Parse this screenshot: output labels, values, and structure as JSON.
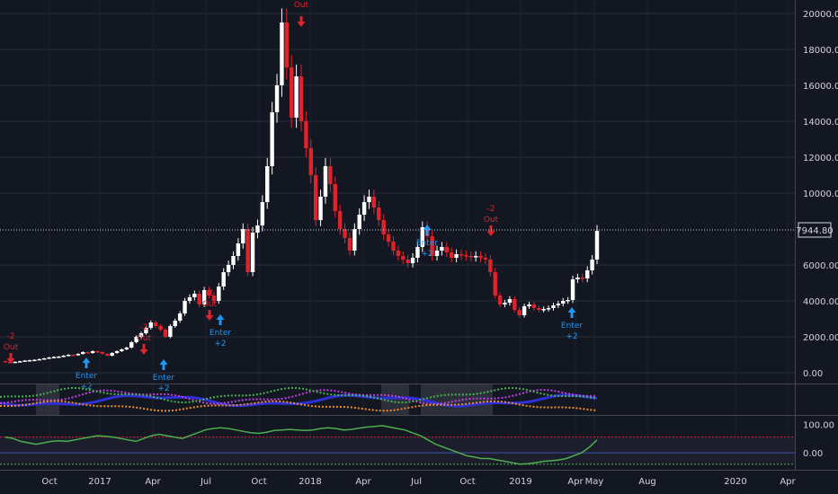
{
  "price_axis": {
    "ticks": [
      "20000.00",
      "18000.00",
      "16000.00",
      "14000.00",
      "12000.00",
      "10000.00",
      "6000.00",
      "4000.00",
      "2000.00",
      "0.00"
    ],
    "last_price_label": "7944.80"
  },
  "osc_axis": {
    "ticks": [
      "100.00",
      "0.00"
    ]
  },
  "time_axis": {
    "ticks": [
      "Oct",
      "2017",
      "Apr",
      "Jul",
      "Oct",
      "2018",
      "Apr",
      "Jul",
      "Oct",
      "2019",
      "Apr",
      "May",
      "Aug",
      "2020",
      "Apr"
    ]
  },
  "signals": [
    {
      "text1": "-2",
      "text2": "Out",
      "dir": "sell"
    },
    {
      "text1": "Enter",
      "text2": "+2",
      "dir": "buy"
    },
    {
      "text1": "-2",
      "text2": "Out",
      "dir": "sell"
    },
    {
      "text1": "Enter",
      "text2": "+2",
      "dir": "buy"
    },
    {
      "text1": "-2",
      "text2": "Out",
      "dir": "sell"
    },
    {
      "text1": "Enter",
      "text2": "+2",
      "dir": "buy"
    },
    {
      "text1": "Out",
      "text2": "",
      "dir": "sell"
    },
    {
      "text1": "Enter",
      "text2": "+2",
      "dir": "buy"
    },
    {
      "text1": "-2",
      "text2": "Out",
      "dir": "sell"
    },
    {
      "text1": "Enter",
      "text2": "+2",
      "dir": "buy"
    }
  ],
  "colors": {
    "background": "#131722",
    "bull": "#ffffff",
    "bear": "#e0222b",
    "buy_signal": "#2196f3",
    "sell_signal": "#e0222b",
    "grid": "#2a2e39",
    "axis_text": "#d1d4dc",
    "osc_line": "#4caf50",
    "osc_upper": "#e0222b",
    "osc_mid": "#3f51b5",
    "osc_lower": "#4caf50"
  },
  "chart_data": {
    "type": "candlestick",
    "price_ylim": [
      0,
      20000
    ],
    "candles": [
      {
        "o": 650,
        "c": 600
      },
      {
        "o": 600,
        "c": 580
      },
      {
        "o": 580,
        "c": 610
      },
      {
        "o": 610,
        "c": 640
      },
      {
        "o": 640,
        "c": 680
      },
      {
        "o": 680,
        "c": 700
      },
      {
        "o": 700,
        "c": 720
      },
      {
        "o": 720,
        "c": 760
      },
      {
        "o": 760,
        "c": 800
      },
      {
        "o": 800,
        "c": 850
      },
      {
        "o": 850,
        "c": 880
      },
      {
        "o": 880,
        "c": 900
      },
      {
        "o": 900,
        "c": 950
      },
      {
        "o": 950,
        "c": 1000
      },
      {
        "o": 1000,
        "c": 980
      },
      {
        "o": 980,
        "c": 1050
      },
      {
        "o": 1050,
        "c": 1150
      },
      {
        "o": 1150,
        "c": 1100
      },
      {
        "o": 1100,
        "c": 1200
      },
      {
        "o": 1200,
        "c": 1150
      },
      {
        "o": 1150,
        "c": 1050
      },
      {
        "o": 1050,
        "c": 950
      },
      {
        "o": 950,
        "c": 1100
      },
      {
        "o": 1100,
        "c": 1200
      },
      {
        "o": 1200,
        "c": 1300
      },
      {
        "o": 1300,
        "c": 1400
      },
      {
        "o": 1400,
        "c": 1700
      },
      {
        "o": 1700,
        "c": 2000
      },
      {
        "o": 2000,
        "c": 2200
      },
      {
        "o": 2200,
        "c": 2500
      },
      {
        "o": 2500,
        "c": 2800
      },
      {
        "o": 2800,
        "c": 2600
      },
      {
        "o": 2600,
        "c": 2400
      },
      {
        "o": 2400,
        "c": 2000
      },
      {
        "o": 2000,
        "c": 2600
      },
      {
        "o": 2600,
        "c": 2900
      },
      {
        "o": 2900,
        "c": 3300
      },
      {
        "o": 3300,
        "c": 4000
      },
      {
        "o": 4000,
        "c": 4200
      },
      {
        "o": 4200,
        "c": 4400
      },
      {
        "o": 4400,
        "c": 3800
      },
      {
        "o": 3800,
        "c": 4600
      },
      {
        "o": 4600,
        "c": 4300
      },
      {
        "o": 4300,
        "c": 4000
      },
      {
        "o": 4000,
        "c": 4800
      },
      {
        "o": 4800,
        "c": 5600
      },
      {
        "o": 5600,
        "c": 6000
      },
      {
        "o": 6000,
        "c": 6500
      },
      {
        "o": 6500,
        "c": 7200
      },
      {
        "o": 7200,
        "c": 8000
      },
      {
        "o": 8000,
        "c": 5600
      },
      {
        "o": 5600,
        "c": 7800
      },
      {
        "o": 7800,
        "c": 8200
      },
      {
        "o": 8200,
        "c": 9500
      },
      {
        "o": 9500,
        "c": 11500
      },
      {
        "o": 11500,
        "c": 14500
      },
      {
        "o": 14500,
        "c": 16000
      },
      {
        "o": 16000,
        "c": 19500
      },
      {
        "o": 19500,
        "c": 17000
      },
      {
        "o": 17000,
        "c": 14200
      },
      {
        "o": 14200,
        "c": 16500
      },
      {
        "o": 16500,
        "c": 14000
      },
      {
        "o": 14000,
        "c": 12500
      },
      {
        "o": 12500,
        "c": 11000
      },
      {
        "o": 11000,
        "c": 8500
      },
      {
        "o": 8500,
        "c": 9800
      },
      {
        "o": 9800,
        "c": 11500
      },
      {
        "o": 11500,
        "c": 10500
      },
      {
        "o": 10500,
        "c": 9000
      },
      {
        "o": 9000,
        "c": 8000
      },
      {
        "o": 8000,
        "c": 7500
      },
      {
        "o": 7500,
        "c": 6800
      },
      {
        "o": 6800,
        "c": 8000
      },
      {
        "o": 8000,
        "c": 8800
      },
      {
        "o": 8800,
        "c": 9500
      },
      {
        "o": 9500,
        "c": 9800
      },
      {
        "o": 9800,
        "c": 9200
      },
      {
        "o": 9200,
        "c": 8500
      },
      {
        "o": 8500,
        "c": 7700
      },
      {
        "o": 7700,
        "c": 7300
      },
      {
        "o": 7300,
        "c": 6800
      },
      {
        "o": 6800,
        "c": 6500
      },
      {
        "o": 6500,
        "c": 6300
      },
      {
        "o": 6300,
        "c": 6100
      },
      {
        "o": 6100,
        "c": 6400
      },
      {
        "o": 6400,
        "c": 7000
      },
      {
        "o": 7000,
        "c": 8100
      },
      {
        "o": 8100,
        "c": 7600
      },
      {
        "o": 7600,
        "c": 6500
      },
      {
        "o": 6500,
        "c": 6800
      },
      {
        "o": 6800,
        "c": 7000
      },
      {
        "o": 7000,
        "c": 6700
      },
      {
        "o": 6700,
        "c": 6400
      },
      {
        "o": 6400,
        "c": 6600
      },
      {
        "o": 6600,
        "c": 6550
      },
      {
        "o": 6550,
        "c": 6500
      },
      {
        "o": 6500,
        "c": 6450
      },
      {
        "o": 6450,
        "c": 6500
      },
      {
        "o": 6500,
        "c": 6400
      },
      {
        "o": 6400,
        "c": 6300
      },
      {
        "o": 6300,
        "c": 5600
      },
      {
        "o": 5600,
        "c": 4300
      },
      {
        "o": 4300,
        "c": 3800
      },
      {
        "o": 3800,
        "c": 3900
      },
      {
        "o": 3900,
        "c": 4100
      },
      {
        "o": 4100,
        "c": 3500
      },
      {
        "o": 3500,
        "c": 3200
      },
      {
        "o": 3200,
        "c": 3700
      },
      {
        "o": 3700,
        "c": 3800
      },
      {
        "o": 3800,
        "c": 3600
      },
      {
        "o": 3600,
        "c": 3500
      },
      {
        "o": 3500,
        "c": 3550
      },
      {
        "o": 3550,
        "c": 3600
      },
      {
        "o": 3600,
        "c": 3750
      },
      {
        "o": 3750,
        "c": 3850
      },
      {
        "o": 3850,
        "c": 4000
      },
      {
        "o": 4000,
        "c": 4050
      },
      {
        "o": 4050,
        "c": 5200
      },
      {
        "o": 5200,
        "c": 5300
      },
      {
        "o": 5300,
        "c": 5250
      },
      {
        "o": 5250,
        "c": 5700
      },
      {
        "o": 5700,
        "c": 6300
      },
      {
        "o": 6300,
        "c": 7900
      }
    ],
    "osc_ylim": [
      -50,
      120
    ],
    "osc_upper": 55,
    "osc_mid": 0,
    "osc_lower": -40,
    "oscillator": [
      55,
      50,
      40,
      35,
      30,
      35,
      40,
      42,
      40,
      45,
      50,
      55,
      60,
      58,
      55,
      50,
      45,
      40,
      50,
      60,
      65,
      60,
      55,
      50,
      60,
      70,
      80,
      85,
      88,
      85,
      80,
      75,
      70,
      68,
      72,
      78,
      80,
      82,
      80,
      78,
      80,
      85,
      88,
      85,
      80,
      82,
      86,
      90,
      92,
      95,
      90,
      85,
      80,
      70,
      60,
      45,
      30,
      20,
      10,
      0,
      -10,
      -15,
      -20,
      -20,
      -25,
      -30,
      -35,
      -40,
      -38,
      -35,
      -30,
      -28,
      -25,
      -20,
      -10,
      0,
      20,
      45
    ]
  }
}
